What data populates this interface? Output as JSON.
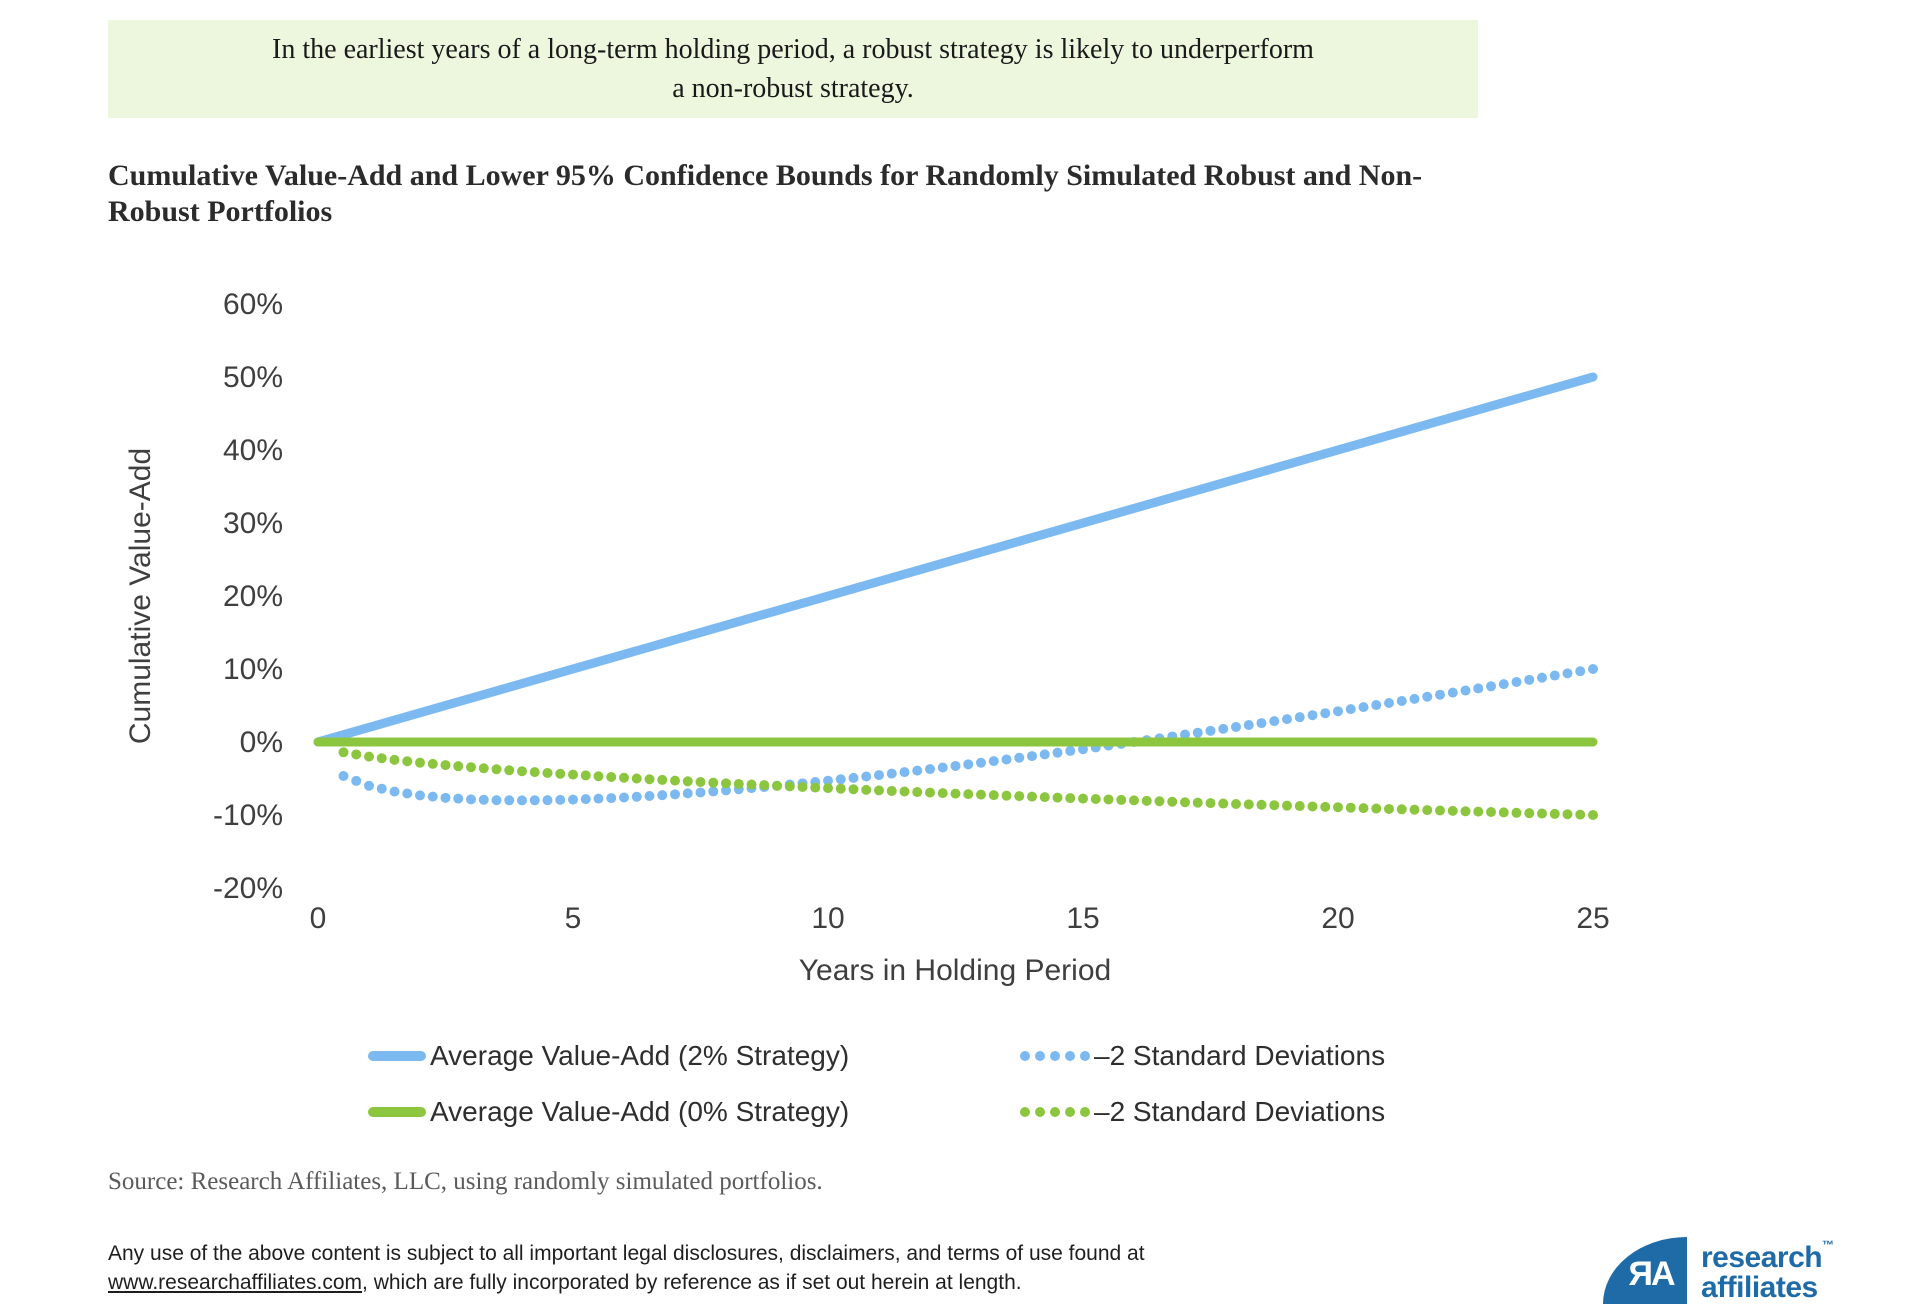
{
  "banner": {
    "text": "In the earliest years of a long-term holding period, a robust strategy is likely to underperform a non-robust strategy."
  },
  "chart_data": {
    "type": "line",
    "title": "Cumulative Value-Add and Lower 95% Confidence Bounds for Randomly Simulated Robust and Non-Robust Portfolios",
    "xlabel": "Years in Holding Period",
    "ylabel": "Cumulative Value-Add",
    "xlim": [
      0,
      25
    ],
    "ylim": [
      -20,
      60
    ],
    "xticks": [
      0,
      5,
      10,
      15,
      20,
      25
    ],
    "yticks": [
      60,
      50,
      40,
      30,
      20,
      10,
      0,
      -10,
      -20
    ],
    "grid": false,
    "legend_position": "bottom",
    "series": [
      {
        "name": "Average Value-Add (2% Strategy)",
        "style": "solid",
        "color_key": "blue",
        "x": [
          0,
          25
        ],
        "y": [
          0,
          50
        ]
      },
      {
        "name": "Average Value-Add (0% Strategy)",
        "style": "solid",
        "color_key": "green",
        "x": [
          0,
          25
        ],
        "y": [
          0,
          0
        ]
      },
      {
        "name": "–2 Standard Deviations",
        "style": "dotted",
        "color_key": "blue",
        "x": [
          0.5,
          1,
          1.5,
          2,
          2.5,
          3,
          3.5,
          4,
          4.5,
          5,
          5.5,
          6,
          6.5,
          7,
          7.5,
          8,
          8.5,
          9,
          9.5,
          10,
          10.5,
          11,
          11.5,
          12,
          12.5,
          13,
          13.5,
          14,
          14.5,
          15,
          15.5,
          16,
          16.5,
          17,
          17.5,
          18,
          18.5,
          19,
          19.5,
          20,
          20.5,
          21,
          21.5,
          22,
          22.5,
          23,
          23.5,
          24,
          24.5,
          25
        ],
        "y": [
          -4.66,
          -6.0,
          -6.8,
          -7.31,
          -7.65,
          -7.86,
          -7.97,
          -8.0,
          -7.97,
          -7.89,
          -7.76,
          -7.6,
          -7.4,
          -7.17,
          -6.91,
          -6.63,
          -6.32,
          -6.0,
          -5.66,
          -5.3,
          -4.92,
          -4.53,
          -4.13,
          -3.71,
          -3.28,
          -2.84,
          -2.39,
          -1.93,
          -1.46,
          -0.98,
          -0.5,
          0.0,
          0.5,
          1.02,
          1.53,
          2.06,
          2.59,
          3.13,
          3.67,
          4.22,
          4.78,
          5.34,
          5.91,
          6.48,
          7.05,
          7.63,
          8.22,
          8.81,
          9.4,
          10.0
        ]
      },
      {
        "name": "–2 Standard Deviations",
        "style": "dotted",
        "color_key": "green",
        "x": [
          0.5,
          1,
          1.5,
          2,
          2.5,
          3,
          3.5,
          4,
          4.5,
          5,
          5.5,
          6,
          6.5,
          7,
          7.5,
          8,
          8.5,
          9,
          9.5,
          10,
          10.5,
          11,
          11.5,
          12,
          12.5,
          13,
          13.5,
          14,
          14.5,
          15,
          15.5,
          16,
          16.5,
          17,
          17.5,
          18,
          18.5,
          19,
          19.5,
          20,
          20.5,
          21,
          21.5,
          22,
          22.5,
          23,
          23.5,
          24,
          24.5,
          25
        ],
        "y": [
          -1.41,
          -2.0,
          -2.45,
          -2.83,
          -3.16,
          -3.46,
          -3.74,
          -4.0,
          -4.24,
          -4.47,
          -4.69,
          -4.9,
          -5.1,
          -5.29,
          -5.48,
          -5.66,
          -5.83,
          -6.0,
          -6.16,
          -6.32,
          -6.48,
          -6.63,
          -6.78,
          -6.93,
          -7.07,
          -7.21,
          -7.35,
          -7.48,
          -7.62,
          -7.75,
          -7.87,
          -8.0,
          -8.12,
          -8.25,
          -8.37,
          -8.49,
          -8.6,
          -8.72,
          -8.83,
          -8.94,
          -9.06,
          -9.17,
          -9.27,
          -9.38,
          -9.49,
          -9.59,
          -9.7,
          -9.8,
          -9.9,
          -10.0
        ]
      }
    ]
  },
  "colors": {
    "blue": "#7CB9F0",
    "green": "#8CC63F",
    "banner_bg": "#EDF7DE",
    "logo_blue": "#1E6BA8",
    "axis_text": "#3F3F3F"
  },
  "source": "Source: Research Affiliates, LLC, using randomly simulated portfolios.",
  "disclaimer": {
    "before_link": "Any use of the above content is subject to all important legal disclosures, disclaimers, and terms of use found at",
    "link": "www.researchaffiliates.com",
    "after_link": ", which are fully incorporated by reference as if set out herein at length."
  },
  "logo": {
    "mark": "ЯA",
    "line1": "research",
    "tm": "™",
    "line2": "affiliates"
  }
}
